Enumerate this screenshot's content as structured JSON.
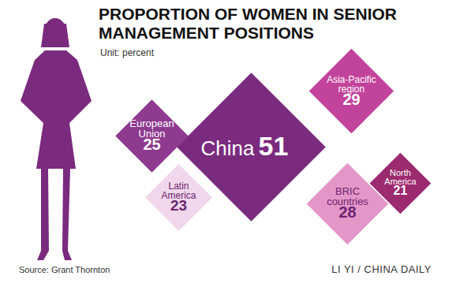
{
  "chart_data": {
    "type": "diamond",
    "title": "PROPORTION OF WOMEN IN SENIOR MANAGEMENT POSITIONS",
    "subtitle": "Unit: percent",
    "source": "Source: Grant Thornton",
    "credit": "LI YI / CHINA DAILY",
    "categories": [
      "European Union",
      "Latin America",
      "China",
      "Asia-Pacific region",
      "North America",
      "BRIC countries"
    ],
    "values": [
      25,
      23,
      51,
      29,
      21,
      28
    ],
    "colors": [
      "#8e3a8f",
      "#f1d7eb",
      "#7a2b7e",
      "#c2439b",
      "#9c2a6e",
      "#e596c8"
    ],
    "data_labels": true,
    "tick_labels": false
  }
}
